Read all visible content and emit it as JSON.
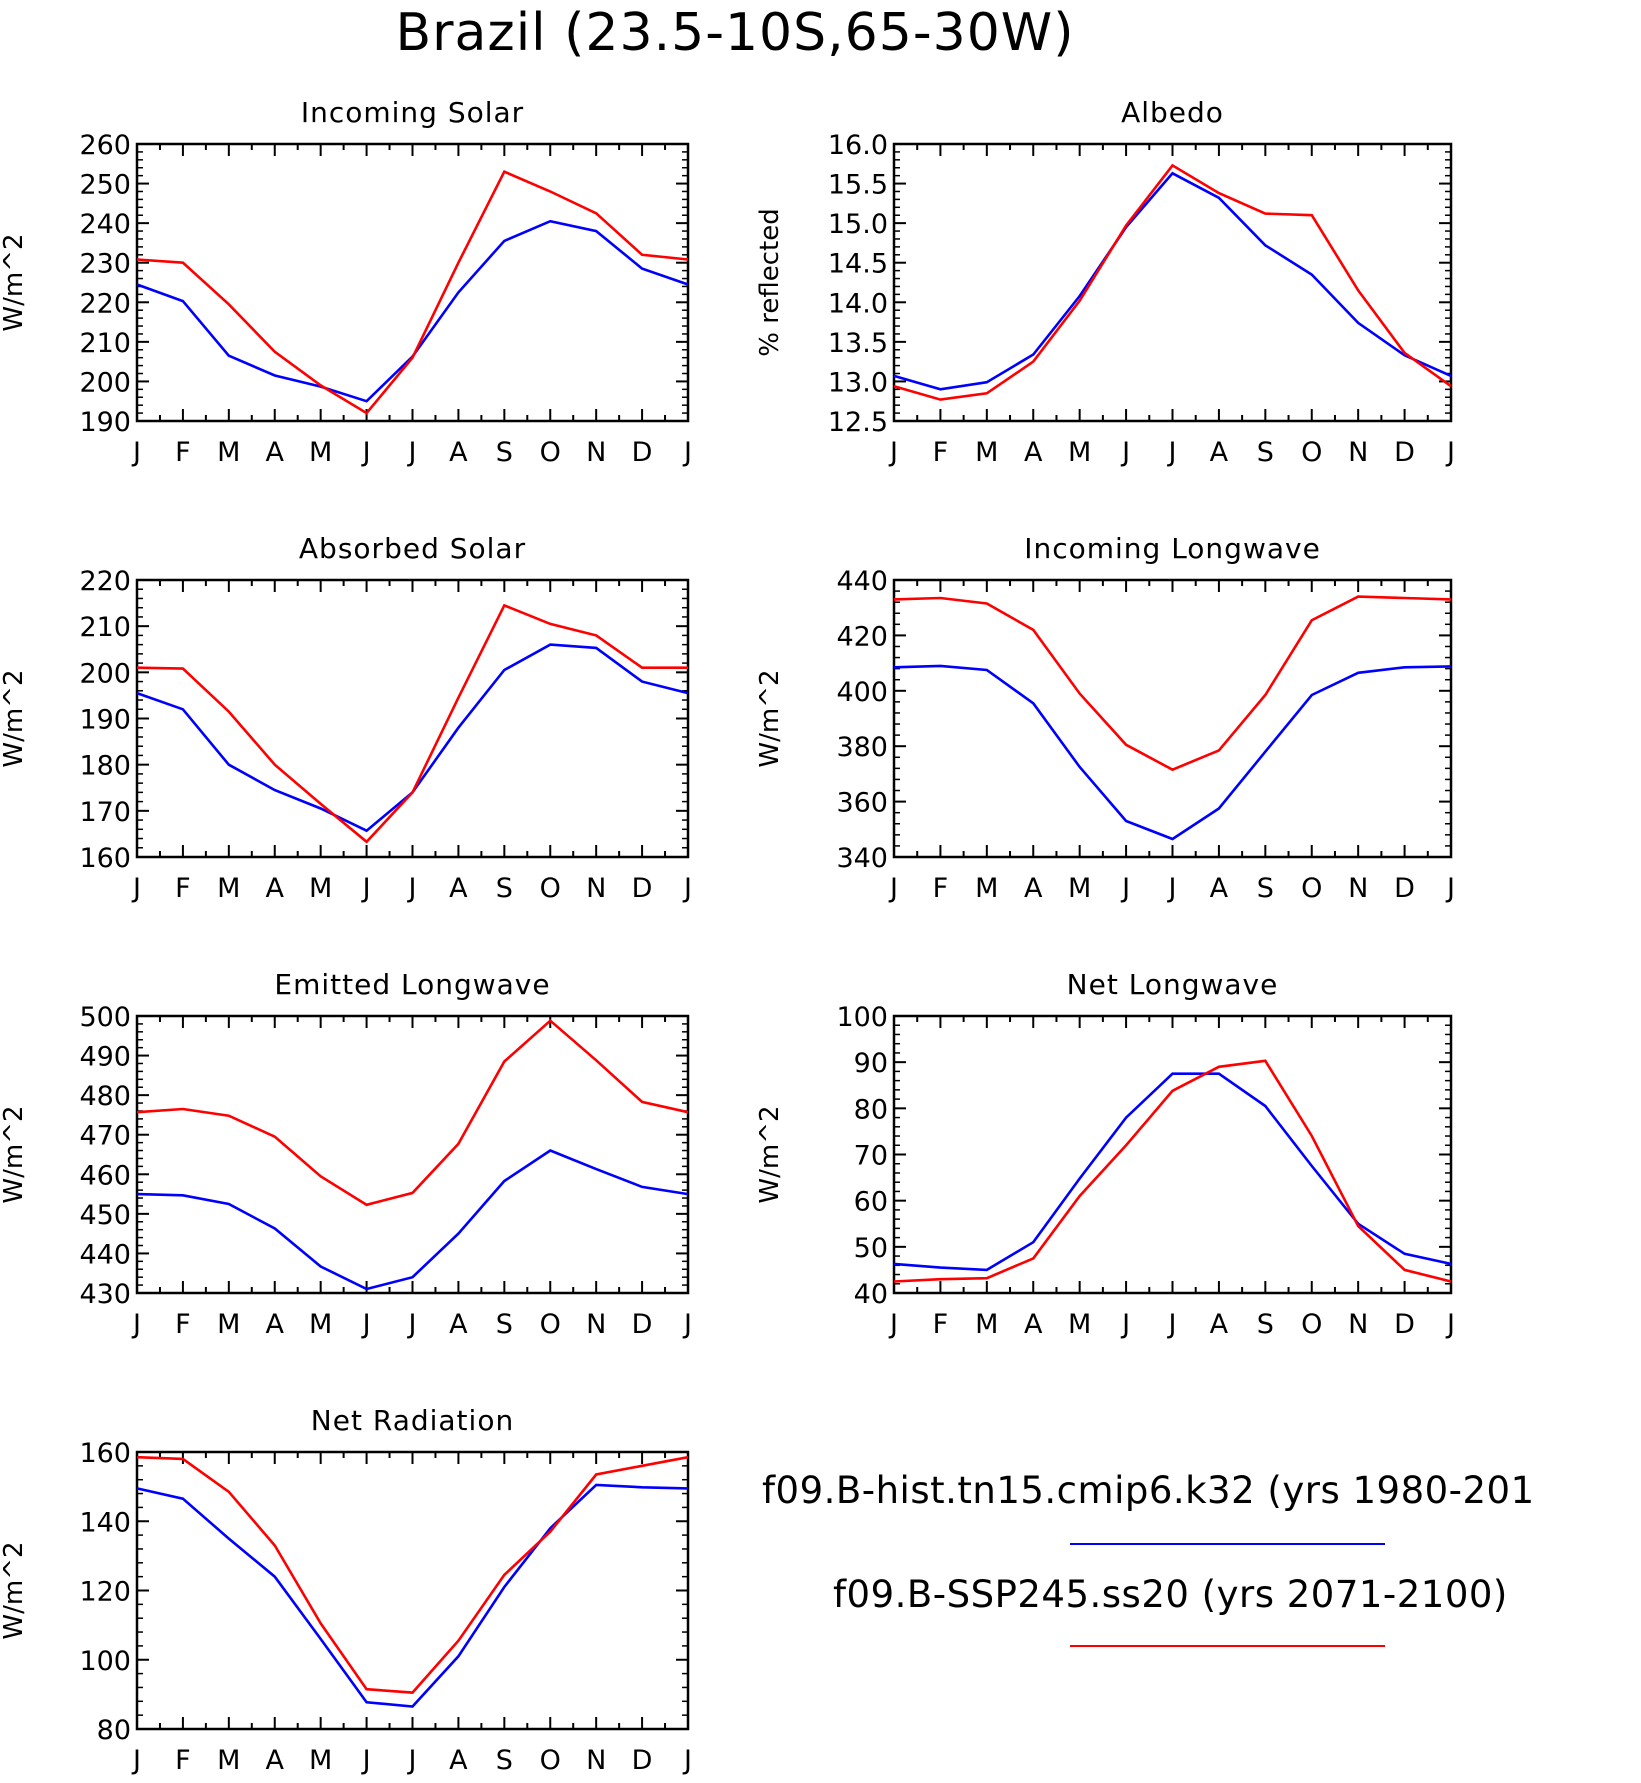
{
  "page_title": "Brazil (23.5-10S,65-30W)",
  "months": [
    "J",
    "F",
    "M",
    "A",
    "M",
    "J",
    "J",
    "A",
    "S",
    "O",
    "N",
    "D",
    "J"
  ],
  "legend": [
    {
      "label": "f09.B-hist.tn15.cmip6.k32 (yrs 1980-201",
      "color": "#0000ff"
    },
    {
      "label": "f09.B-SSP245.ss20 (yrs 2071-2100)",
      "color": "#ff0000"
    }
  ],
  "chart_data": [
    {
      "type": "line",
      "title": "Incoming Solar",
      "ylabel": "W/m^2",
      "ylim": [
        190,
        260
      ],
      "yticks": [
        190,
        200,
        210,
        220,
        230,
        240,
        250,
        260
      ],
      "ytick_labels": [
        "190",
        "200",
        "210",
        "220",
        "230",
        "240",
        "250",
        "260"
      ],
      "x": [
        "J",
        "F",
        "M",
        "A",
        "M",
        "J",
        "J",
        "A",
        "S",
        "O",
        "N",
        "D",
        "J"
      ],
      "series": [
        {
          "color": "#0000ff",
          "values": [
            224.5,
            220.3,
            206.5,
            201.5,
            198.7,
            195.0,
            206.3,
            222.5,
            235.5,
            240.5,
            238.0,
            228.5,
            224.5
          ]
        },
        {
          "color": "#ff0000",
          "values": [
            230.8,
            230.0,
            219.5,
            207.5,
            199.0,
            192.0,
            206.0,
            230.0,
            253.0,
            248.0,
            242.5,
            232.0,
            230.8
          ]
        }
      ]
    },
    {
      "type": "line",
      "title": "Albedo",
      "ylabel": "% reflected",
      "ylim": [
        12.5,
        16.0
      ],
      "yticks": [
        12.5,
        13.0,
        13.5,
        14.0,
        14.5,
        15.0,
        15.5,
        16.0
      ],
      "ytick_labels": [
        "12.5",
        "13.0",
        "13.5",
        "14.0",
        "14.5",
        "15.0",
        "15.5",
        "16.0"
      ],
      "x": [
        "J",
        "F",
        "M",
        "A",
        "M",
        "J",
        "J",
        "A",
        "S",
        "O",
        "N",
        "D",
        "J"
      ],
      "series": [
        {
          "color": "#0000ff",
          "values": [
            13.07,
            12.9,
            12.99,
            13.34,
            14.08,
            14.95,
            15.63,
            15.32,
            14.72,
            14.35,
            13.74,
            13.33,
            13.07
          ]
        },
        {
          "color": "#ff0000",
          "values": [
            12.94,
            12.77,
            12.85,
            13.25,
            14.02,
            14.97,
            15.73,
            15.38,
            15.12,
            15.1,
            14.15,
            13.36,
            12.94
          ]
        }
      ]
    },
    {
      "type": "line",
      "title": "Absorbed Solar",
      "ylabel": "W/m^2",
      "ylim": [
        160,
        220
      ],
      "yticks": [
        160,
        170,
        180,
        190,
        200,
        210,
        220
      ],
      "ytick_labels": [
        "160",
        "170",
        "180",
        "190",
        "200",
        "210",
        "220"
      ],
      "x": [
        "J",
        "F",
        "M",
        "A",
        "M",
        "J",
        "J",
        "A",
        "S",
        "O",
        "N",
        "D",
        "J"
      ],
      "series": [
        {
          "color": "#0000ff",
          "values": [
            195.5,
            192.0,
            180.0,
            174.5,
            170.5,
            165.7,
            174.0,
            188.0,
            200.5,
            206.0,
            205.3,
            198.0,
            195.5
          ]
        },
        {
          "color": "#ff0000",
          "values": [
            201.0,
            200.8,
            191.5,
            180.0,
            171.5,
            163.3,
            174.0,
            194.5,
            214.5,
            210.5,
            208.0,
            201.0,
            201.0
          ]
        }
      ]
    },
    {
      "type": "line",
      "title": "Incoming Longwave",
      "ylabel": "W/m^2",
      "ylim": [
        340,
        440
      ],
      "yticks": [
        340,
        360,
        380,
        400,
        420,
        440
      ],
      "ytick_labels": [
        "340",
        "360",
        "380",
        "400",
        "420",
        "440"
      ],
      "x": [
        "J",
        "F",
        "M",
        "A",
        "M",
        "J",
        "J",
        "A",
        "S",
        "O",
        "N",
        "D",
        "J"
      ],
      "series": [
        {
          "color": "#0000ff",
          "values": [
            408.5,
            409.0,
            407.5,
            395.5,
            372.5,
            353.0,
            346.5,
            357.5,
            378.0,
            398.5,
            406.5,
            408.5,
            408.8
          ]
        },
        {
          "color": "#ff0000",
          "values": [
            433.0,
            433.5,
            431.5,
            422.0,
            399.0,
            380.5,
            371.5,
            378.5,
            398.5,
            425.5,
            434.0,
            433.5,
            433.0
          ]
        }
      ]
    },
    {
      "type": "line",
      "title": "Emitted Longwave",
      "ylabel": "W/m^2",
      "ylim": [
        430,
        500
      ],
      "yticks": [
        430,
        440,
        450,
        460,
        470,
        480,
        490,
        500
      ],
      "ytick_labels": [
        "430",
        "440",
        "450",
        "460",
        "470",
        "480",
        "490",
        "500"
      ],
      "x": [
        "J",
        "F",
        "M",
        "A",
        "M",
        "J",
        "J",
        "A",
        "S",
        "O",
        "N",
        "D",
        "J"
      ],
      "series": [
        {
          "color": "#0000ff",
          "values": [
            455.0,
            454.7,
            452.5,
            446.3,
            436.7,
            431.0,
            434.0,
            445.0,
            458.3,
            466.0,
            461.3,
            456.8,
            455.0
          ]
        },
        {
          "color": "#ff0000",
          "values": [
            475.7,
            476.5,
            474.8,
            469.5,
            459.5,
            452.3,
            455.3,
            467.7,
            488.5,
            498.8,
            488.8,
            478.3,
            475.7
          ]
        }
      ]
    },
    {
      "type": "line",
      "title": "Net Longwave",
      "ylabel": "W/m^2",
      "ylim": [
        40,
        100
      ],
      "yticks": [
        40,
        50,
        60,
        70,
        80,
        90,
        100
      ],
      "ytick_labels": [
        "40",
        "50",
        "60",
        "70",
        "80",
        "90",
        "100"
      ],
      "x": [
        "J",
        "F",
        "M",
        "A",
        "M",
        "J",
        "J",
        "A",
        "S",
        "O",
        "N",
        "D",
        "J"
      ],
      "series": [
        {
          "color": "#0000ff",
          "values": [
            46.3,
            45.5,
            45.0,
            51.0,
            64.8,
            78.0,
            87.5,
            87.5,
            80.5,
            67.5,
            55.0,
            48.5,
            46.3
          ]
        },
        {
          "color": "#ff0000",
          "values": [
            42.5,
            43.0,
            43.2,
            47.5,
            61.0,
            72.0,
            83.8,
            89.0,
            90.3,
            74.0,
            54.5,
            45.0,
            42.5
          ]
        }
      ]
    },
    {
      "type": "line",
      "title": "Net Radiation",
      "ylabel": "W/m^2",
      "ylim": [
        80,
        160
      ],
      "yticks": [
        80,
        100,
        120,
        140,
        160
      ],
      "ytick_labels": [
        "80",
        "100",
        "120",
        "140",
        "160"
      ],
      "x": [
        "J",
        "F",
        "M",
        "A",
        "M",
        "J",
        "J",
        "A",
        "S",
        "O",
        "N",
        "D",
        "J"
      ],
      "series": [
        {
          "color": "#0000ff",
          "values": [
            149.5,
            146.5,
            135.0,
            124.0,
            106.0,
            87.7,
            86.5,
            101.0,
            121.0,
            138.0,
            150.5,
            149.8,
            149.5
          ]
        },
        {
          "color": "#ff0000",
          "values": [
            158.5,
            158.0,
            148.5,
            133.0,
            110.5,
            91.5,
            90.5,
            105.5,
            124.5,
            137.0,
            153.5,
            156.0,
            158.5
          ]
        }
      ]
    }
  ]
}
